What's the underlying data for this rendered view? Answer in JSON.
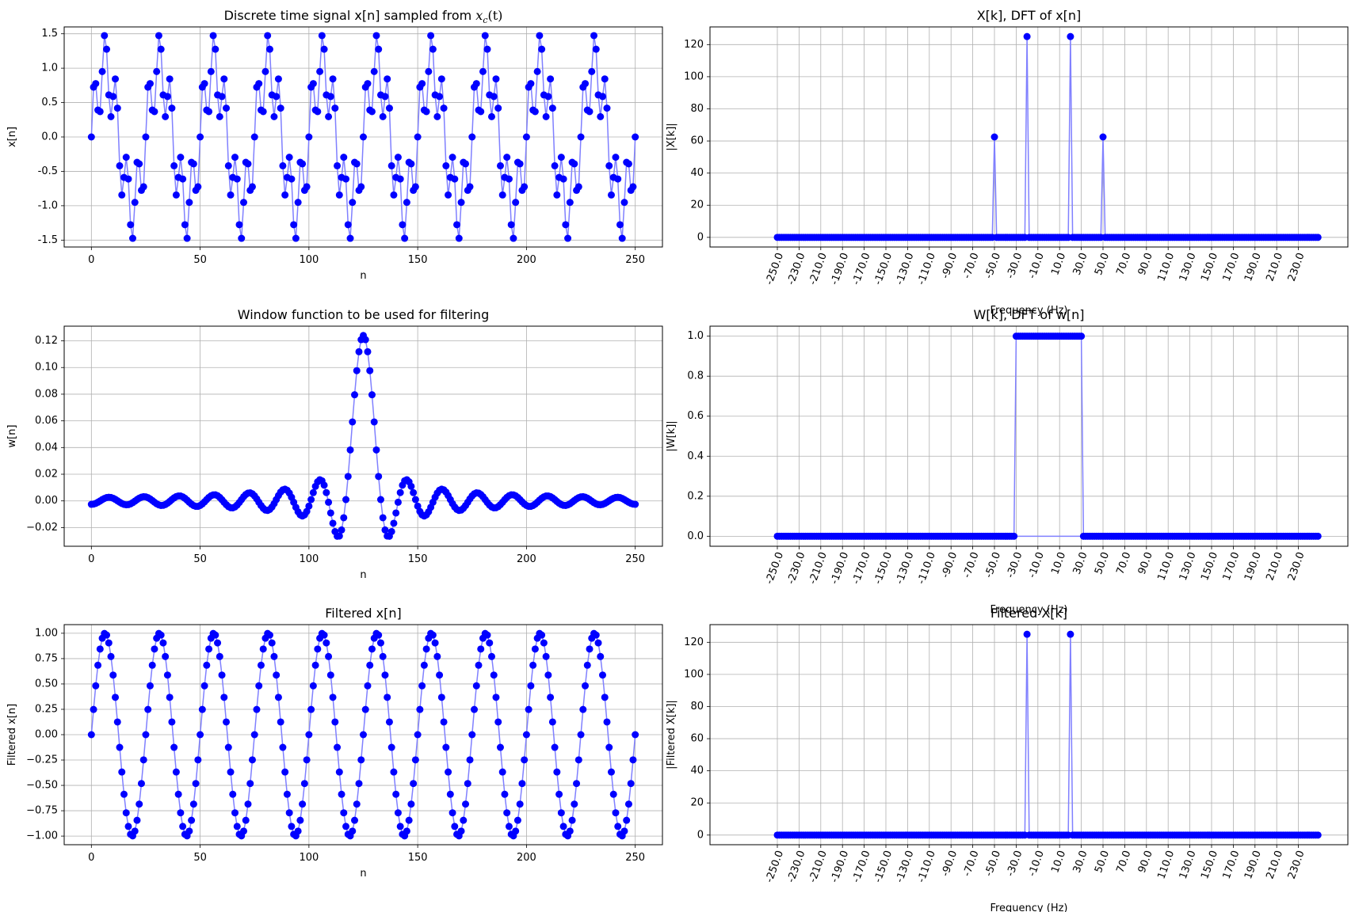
{
  "colors": {
    "marker": "#0000ff",
    "line": "#8080ff",
    "grid": "#b0b0b0",
    "axes": "#000000"
  },
  "chart_data": [
    {
      "id": "xn",
      "type": "scatter",
      "subtype": "time",
      "title": "Discrete time signal x[n] sampled from x_c(t)",
      "title_main": "Discrete time signal x[n] sampled from ",
      "title_math_base": "x",
      "title_math_sub": "c",
      "title_math_arg": "(t)",
      "xlabel": "n",
      "ylabel": "x[n]",
      "xlim": [
        -12.5,
        262.5
      ],
      "ylim": [
        -1.6,
        1.6
      ],
      "xticks": [
        0,
        50,
        100,
        150,
        200,
        250
      ],
      "yticks": [
        -1.5,
        -1.0,
        -0.5,
        0.0,
        0.5,
        1.0,
        1.5
      ],
      "ytick_labels": [
        "-1.5",
        "-1.0",
        "-0.5",
        "0.0",
        "0.5",
        "1.0",
        "1.5"
      ],
      "grid": true,
      "generator": {
        "n_start": 0,
        "n_end": 250,
        "components": [
          {
            "amplitude": 1.0,
            "cycles_per_sample": 0.04
          },
          {
            "amplitude": 0.5,
            "cycles_per_sample": 0.2
          }
        ]
      }
    },
    {
      "id": "Xk",
      "type": "stem",
      "subtype": "freq",
      "title": "X[k], DFT of x[n]",
      "xlabel": "Frequency (Hz)",
      "ylabel": "|X[k]|",
      "xlim": [
        -250,
        250
      ],
      "ylim": [
        -6,
        131
      ],
      "yticks": [
        0,
        20,
        40,
        60,
        80,
        100,
        120
      ],
      "xtick_values": [
        -250,
        -230,
        -210,
        -190,
        -170,
        -150,
        -130,
        -110,
        -90,
        -70,
        -50,
        -30,
        -10,
        10,
        30,
        50,
        70,
        90,
        110,
        130,
        150,
        170,
        190,
        210,
        230
      ],
      "xtick_labels": [
        "-250.0",
        "-230.0",
        "-210.0",
        "-190.0",
        "-170.0",
        "-150.0",
        "-130.0",
        "-110.0",
        "-90.0",
        "-70.0",
        "-50.0",
        "-30.0",
        "-10.0",
        "10.0",
        "30.0",
        "50.0",
        "70.0",
        "90.0",
        "110.0",
        "130.0",
        "150.0",
        "170.0",
        "190.0",
        "210.0",
        "230.0"
      ],
      "grid": true,
      "generator": {
        "f_start": -250,
        "f_end": 248,
        "f_step": 2,
        "default": 0,
        "peaks": [
          {
            "f": -50,
            "value": 62.5
          },
          {
            "f": -20,
            "value": 125
          },
          {
            "f": 20,
            "value": 125
          },
          {
            "f": 50,
            "value": 62.5
          }
        ]
      }
    },
    {
      "id": "wn",
      "type": "scatter",
      "subtype": "time",
      "title": "Window function to be used for filtering",
      "xlabel": "n",
      "ylabel": "w[n]",
      "xlim": [
        -12.5,
        262.5
      ],
      "ylim": [
        -0.034,
        0.131
      ],
      "xticks": [
        0,
        50,
        100,
        150,
        200,
        250
      ],
      "yticks": [
        -0.02,
        0.0,
        0.02,
        0.04,
        0.06,
        0.08,
        0.1,
        0.12
      ],
      "ytick_labels": [
        "−0.02",
        "0.00",
        "0.02",
        "0.04",
        "0.06",
        "0.08",
        "0.10",
        "0.12"
      ],
      "grid": true,
      "generator": {
        "n_start": 0,
        "n_end": 250,
        "center": 125,
        "cutoff_cycles_per_sample": 0.062,
        "gain": 2
      }
    },
    {
      "id": "Wk",
      "type": "stem",
      "subtype": "freq",
      "title": "W[k], DFT of w[n]",
      "xlabel": "Frequency (Hz)",
      "ylabel": "|W[k]|",
      "xlim": [
        -250,
        250
      ],
      "ylim": [
        -0.05,
        1.05
      ],
      "yticks": [
        0.0,
        0.2,
        0.4,
        0.6,
        0.8,
        1.0
      ],
      "ytick_labels": [
        "0.0",
        "0.2",
        "0.4",
        "0.6",
        "0.8",
        "1.0"
      ],
      "xtick_values": [
        -250,
        -230,
        -210,
        -190,
        -170,
        -150,
        -130,
        -110,
        -90,
        -70,
        -50,
        -30,
        -10,
        10,
        30,
        50,
        70,
        90,
        110,
        130,
        150,
        170,
        190,
        210,
        230
      ],
      "xtick_labels": [
        "-250.0",
        "-230.0",
        "-210.0",
        "-190.0",
        "-170.0",
        "-150.0",
        "-130.0",
        "-110.0",
        "-90.0",
        "-70.0",
        "-50.0",
        "-30.0",
        "-10.0",
        "10.0",
        "30.0",
        "50.0",
        "70.0",
        "90.0",
        "110.0",
        "130.0",
        "150.0",
        "170.0",
        "190.0",
        "210.0",
        "230.0"
      ],
      "grid": true,
      "generator": {
        "f_start": -250,
        "f_end": 248,
        "f_step": 2,
        "default": 0,
        "band": {
          "f_min": -31,
          "f_max": 31,
          "value": 1.0
        },
        "passband_line_drawn": false
      }
    },
    {
      "id": "yn",
      "type": "scatter",
      "subtype": "time",
      "title": "Filtered x[n]",
      "xlabel": "n",
      "ylabel": "Filtered x[n]",
      "xlim": [
        -12.5,
        262.5
      ],
      "ylim": [
        -1.085,
        1.085
      ],
      "xticks": [
        0,
        50,
        100,
        150,
        200,
        250
      ],
      "yticks": [
        -1.0,
        -0.75,
        -0.5,
        -0.25,
        0.0,
        0.25,
        0.5,
        0.75,
        1.0
      ],
      "ytick_labels": [
        "−1.00",
        "−0.75",
        "−0.50",
        "−0.25",
        "0.00",
        "0.25",
        "0.50",
        "0.75",
        "1.00"
      ],
      "grid": true,
      "generator": {
        "n_start": 0,
        "n_end": 250,
        "components": [
          {
            "amplitude": 1.0,
            "cycles_per_sample": 0.04
          }
        ]
      }
    },
    {
      "id": "Yk",
      "type": "stem",
      "subtype": "freq",
      "title": "Filtered X[k]",
      "xlabel": "Frequency (Hz)",
      "ylabel": "|Filtered X[k]|",
      "xlim": [
        -250,
        250
      ],
      "ylim": [
        -6,
        131
      ],
      "yticks": [
        0,
        20,
        40,
        60,
        80,
        100,
        120
      ],
      "xtick_values": [
        -250,
        -230,
        -210,
        -190,
        -170,
        -150,
        -130,
        -110,
        -90,
        -70,
        -50,
        -30,
        -10,
        10,
        30,
        50,
        70,
        90,
        110,
        130,
        150,
        170,
        190,
        210,
        230
      ],
      "xtick_labels": [
        "-250.0",
        "-230.0",
        "-210.0",
        "-190.0",
        "-170.0",
        "-150.0",
        "-130.0",
        "-110.0",
        "-90.0",
        "-70.0",
        "-50.0",
        "-30.0",
        "-10.0",
        "10.0",
        "30.0",
        "50.0",
        "70.0",
        "90.0",
        "110.0",
        "130.0",
        "150.0",
        "170.0",
        "190.0",
        "210.0",
        "230.0"
      ],
      "grid": true,
      "generator": {
        "f_start": -250,
        "f_end": 248,
        "f_step": 2,
        "default": 0,
        "peaks": [
          {
            "f": -20,
            "value": 125
          },
          {
            "f": 20,
            "value": 125
          }
        ]
      }
    }
  ]
}
